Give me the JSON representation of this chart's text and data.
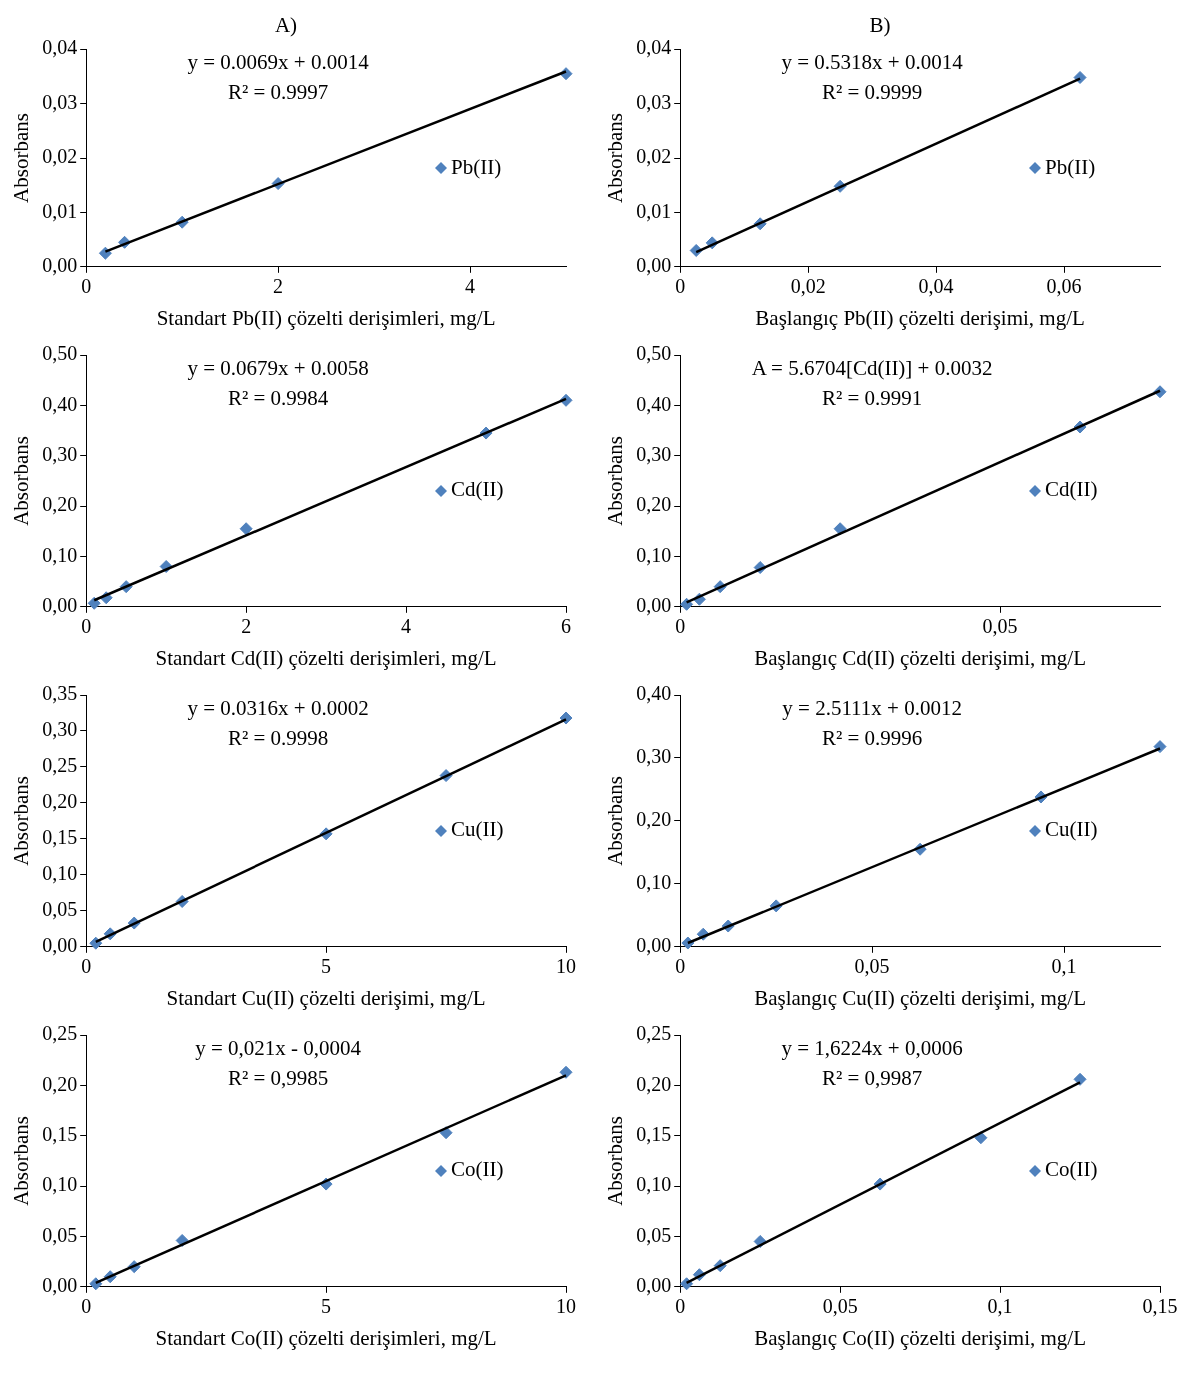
{
  "chart_data": [
    {
      "type": "scatter",
      "title": "A)",
      "xlabel": "Standart Pb(II) çözelti derişimleri, mg/L",
      "ylabel": "Absorbans",
      "legend": "right",
      "grid": false,
      "xlim": [
        0,
        5
      ],
      "xticks": [
        0,
        2,
        4
      ],
      "ylim": [
        0,
        0.04
      ],
      "yticks": [
        {
          "value": 0,
          "label": "0,00"
        },
        {
          "value": 0.01,
          "label": "0,01"
        },
        {
          "value": 0.02,
          "label": "0,02"
        },
        {
          "value": 0.03,
          "label": "0,03"
        },
        {
          "value": 0.04,
          "label": "0,04"
        }
      ],
      "annotations": [
        "y = 0.0069x + 0.0014",
        "R² = 0.9997"
      ],
      "series": [
        {
          "name": "Pb(II)",
          "color": "#4f81bd",
          "marker": "diamond",
          "x": [
            0.2,
            0.4,
            1,
            2,
            5
          ],
          "values": [
            0.0025,
            0.0045,
            0.0082,
            0.0153,
            0.0355
          ]
        },
        {
          "type": "line",
          "color": "#000000",
          "marker": "none",
          "x": [
            0.2,
            5
          ],
          "values": [
            0.0028,
            0.0359
          ]
        }
      ]
    },
    {
      "type": "scatter",
      "title": "B)",
      "xlabel": "Başlangıç Pb(II) çözelti derişimi, mg/L",
      "ylabel": "Absorbans",
      "legend": "right",
      "grid": false,
      "xlim": [
        0,
        0.075
      ],
      "xticks": [
        0,
        {
          "value": 0.02,
          "label": "0,02"
        },
        {
          "value": 0.04,
          "label": "0,04"
        },
        {
          "value": 0.06,
          "label": "0,06"
        }
      ],
      "ylim": [
        0,
        0.04
      ],
      "yticks": [
        {
          "value": 0,
          "label": "0,00"
        },
        {
          "value": 0.01,
          "label": "0,01"
        },
        {
          "value": 0.02,
          "label": "0,02"
        },
        {
          "value": 0.03,
          "label": "0,03"
        },
        {
          "value": 0.04,
          "label": "0,04"
        }
      ],
      "annotations": [
        "y = 0.5318x + 0.0014",
        "R² = 0.9999"
      ],
      "series": [
        {
          "name": "Pb(II)",
          "color": "#4f81bd",
          "marker": "diamond",
          "x": [
            0.0025,
            0.005,
            0.0125,
            0.025,
            0.0625
          ],
          "values": [
            0.003,
            0.0044,
            0.0079,
            0.0148,
            0.0348
          ]
        },
        {
          "type": "line",
          "color": "#000000",
          "marker": "none",
          "x": [
            0.0025,
            0.0625
          ],
          "values": [
            0.0027,
            0.0346
          ]
        }
      ]
    },
    {
      "type": "scatter",
      "xlabel": "Standart Cd(II) çözelti derişimleri, mg/L",
      "ylabel": "Absorbans",
      "legend": "right",
      "grid": false,
      "xlim": [
        0,
        6
      ],
      "xticks": [
        0,
        2,
        4,
        6
      ],
      "ylim": [
        0,
        0.5
      ],
      "yticks": [
        {
          "value": 0,
          "label": "0,00"
        },
        {
          "value": 0.1,
          "label": "0,10"
        },
        {
          "value": 0.2,
          "label": "0,20"
        },
        {
          "value": 0.3,
          "label": "0,30"
        },
        {
          "value": 0.4,
          "label": "0,40"
        },
        {
          "value": 0.5,
          "label": "0,50"
        }
      ],
      "annotations": [
        "y = 0.0679x + 0.0058",
        "R² = 0.9984"
      ],
      "series": [
        {
          "name": "Cd(II)",
          "color": "#4f81bd",
          "marker": "diamond",
          "x": [
            0.1,
            0.25,
            0.5,
            1,
            2,
            5,
            6
          ],
          "values": [
            0.007,
            0.018,
            0.04,
            0.08,
            0.155,
            0.345,
            0.41
          ]
        },
        {
          "type": "line",
          "color": "#000000",
          "marker": "none",
          "x": [
            0.1,
            6
          ],
          "values": [
            0.013,
            0.413
          ]
        }
      ]
    },
    {
      "type": "scatter",
      "xlabel": "Başlangıç Cd(II) çözelti derişimi, mg/L",
      "ylabel": "Absorbans",
      "legend": "right",
      "grid": false,
      "xlim": [
        0,
        0.075
      ],
      "xticks": [
        0,
        {
          "value": 0.05,
          "label": "0,05"
        }
      ],
      "ylim": [
        0,
        0.5
      ],
      "yticks": [
        {
          "value": 0,
          "label": "0,00"
        },
        {
          "value": 0.1,
          "label": "0,10"
        },
        {
          "value": 0.2,
          "label": "0,20"
        },
        {
          "value": 0.3,
          "label": "0,30"
        },
        {
          "value": 0.4,
          "label": "0,40"
        },
        {
          "value": 0.5,
          "label": "0,50"
        }
      ],
      "annotations": [
        "A = 5.6704[Cd(II)] + 0.0032",
        "R² = 0.9991"
      ],
      "series": [
        {
          "name": "Cd(II)",
          "color": "#4f81bd",
          "marker": "diamond",
          "x": [
            0.001,
            0.003,
            0.00625,
            0.0125,
            0.025,
            0.0625,
            0.075
          ],
          "values": [
            0.005,
            0.015,
            0.04,
            0.078,
            0.155,
            0.357,
            0.427
          ]
        },
        {
          "type": "line",
          "color": "#000000",
          "marker": "none",
          "x": [
            0.001,
            0.075
          ],
          "values": [
            0.009,
            0.429
          ]
        }
      ]
    },
    {
      "type": "scatter",
      "xlabel": "Standart Cu(II) çözelti derişimi, mg/L",
      "ylabel": "Absorbans",
      "legend": "right",
      "grid": false,
      "xlim": [
        0,
        10
      ],
      "xticks": [
        0,
        5,
        10
      ],
      "ylim": [
        0,
        0.35
      ],
      "yticks": [
        {
          "value": 0,
          "label": "0,00"
        },
        {
          "value": 0.05,
          "label": "0,05"
        },
        {
          "value": 0.1,
          "label": "0,10"
        },
        {
          "value": 0.15,
          "label": "0,15"
        },
        {
          "value": 0.2,
          "label": "0,20"
        },
        {
          "value": 0.25,
          "label": "0,25"
        },
        {
          "value": 0.3,
          "label": "0,30"
        },
        {
          "value": 0.35,
          "label": "0,35"
        }
      ],
      "annotations": [
        "y = 0.0316x + 0.0002",
        "R² = 0.9998"
      ],
      "series": [
        {
          "name": "Cu(II)",
          "color": "#4f81bd",
          "marker": "diamond",
          "x": [
            0.2,
            0.5,
            1,
            2,
            5,
            7.5,
            10
          ],
          "values": [
            0.005,
            0.018,
            0.033,
            0.063,
            0.157,
            0.238,
            0.318
          ]
        },
        {
          "type": "line",
          "color": "#000000",
          "marker": "none",
          "x": [
            0.2,
            10
          ],
          "values": [
            0.007,
            0.316
          ]
        }
      ]
    },
    {
      "type": "scatter",
      "xlabel": "Başlangıç Cu(II) çözelti derişimi, mg/L",
      "ylabel": "Absorbans",
      "legend": "right",
      "grid": false,
      "xlim": [
        0,
        0.125
      ],
      "xticks": [
        0,
        {
          "value": 0.05,
          "label": "0,05"
        },
        {
          "value": 0.1,
          "label": "0,1"
        }
      ],
      "ylim": [
        0,
        0.4
      ],
      "yticks": [
        {
          "value": 0,
          "label": "0,00"
        },
        {
          "value": 0.1,
          "label": "0,10"
        },
        {
          "value": 0.2,
          "label": "0,20"
        },
        {
          "value": 0.3,
          "label": "0,30"
        },
        {
          "value": 0.4,
          "label": "0,40"
        }
      ],
      "annotations": [
        "y = 2.5111x + 0.0012",
        "R² = 0.9996"
      ],
      "series": [
        {
          "name": "Cu(II)",
          "color": "#4f81bd",
          "marker": "diamond",
          "x": [
            0.002,
            0.006,
            0.0125,
            0.025,
            0.0625,
            0.094,
            0.125
          ],
          "values": [
            0.006,
            0.02,
            0.033,
            0.065,
            0.155,
            0.238,
            0.318
          ]
        },
        {
          "type": "line",
          "color": "#000000",
          "marker": "none",
          "x": [
            0.002,
            0.125
          ],
          "values": [
            0.006,
            0.315
          ]
        }
      ]
    },
    {
      "type": "scatter",
      "xlabel": "Standart Co(II) çözelti derişimleri, mg/L",
      "ylabel": "Absorbans",
      "legend": "right",
      "grid": false,
      "xlim": [
        0,
        10
      ],
      "xticks": [
        0,
        5,
        10
      ],
      "ylim": [
        0,
        0.25
      ],
      "yticks": [
        {
          "value": 0,
          "label": "0,00"
        },
        {
          "value": 0.05,
          "label": "0,05"
        },
        {
          "value": 0.1,
          "label": "0,10"
        },
        {
          "value": 0.15,
          "label": "0,15"
        },
        {
          "value": 0.2,
          "label": "0,20"
        },
        {
          "value": 0.25,
          "label": "0,25"
        }
      ],
      "annotations": [
        "y = 0,021x - 0,0004",
        "R² = 0,9985"
      ],
      "series": [
        {
          "name": "Co(II)",
          "color": "#4f81bd",
          "marker": "diamond",
          "x": [
            0.2,
            0.5,
            1,
            2,
            5,
            7.5,
            10
          ],
          "values": [
            0.003,
            0.01,
            0.02,
            0.046,
            0.102,
            0.153,
            0.213
          ]
        },
        {
          "type": "line",
          "color": "#000000",
          "marker": "none",
          "x": [
            0.2,
            10
          ],
          "values": [
            0.004,
            0.21
          ]
        }
      ]
    },
    {
      "type": "scatter",
      "xlabel": "Başlangıç Co(II) çözelti derişimi, mg/L",
      "ylabel": "Absorbans",
      "legend": "right",
      "grid": false,
      "xlim": [
        0,
        0.15
      ],
      "xticks": [
        0,
        {
          "value": 0.05,
          "label": "0,05"
        },
        {
          "value": 0.1,
          "label": "0,1"
        },
        {
          "value": 0.15,
          "label": "0,15"
        }
      ],
      "ylim": [
        0,
        0.25
      ],
      "yticks": [
        {
          "value": 0,
          "label": "0,00"
        },
        {
          "value": 0.05,
          "label": "0,05"
        },
        {
          "value": 0.1,
          "label": "0,10"
        },
        {
          "value": 0.15,
          "label": "0,15"
        },
        {
          "value": 0.2,
          "label": "0,20"
        },
        {
          "value": 0.25,
          "label": "0,25"
        }
      ],
      "annotations": [
        "y = 1,6224x + 0,0006",
        "R² = 0,9987"
      ],
      "series": [
        {
          "name": "Co(II)",
          "color": "#4f81bd",
          "marker": "diamond",
          "x": [
            0.002,
            0.006,
            0.0125,
            0.025,
            0.0625,
            0.094,
            0.125
          ],
          "values": [
            0.003,
            0.012,
            0.021,
            0.045,
            0.102,
            0.148,
            0.206
          ]
        },
        {
          "type": "line",
          "color": "#000000",
          "marker": "none",
          "x": [
            0.002,
            0.125
          ],
          "values": [
            0.004,
            0.203
          ]
        }
      ]
    }
  ]
}
